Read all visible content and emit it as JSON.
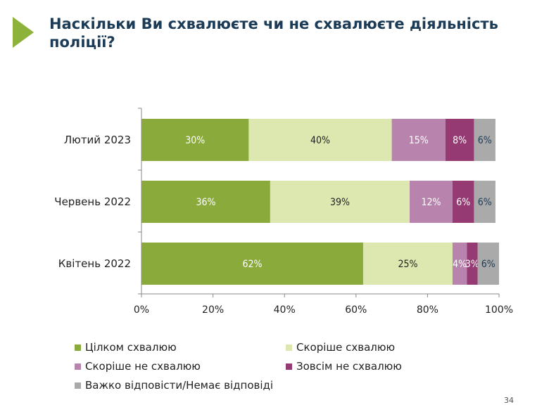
{
  "title": "Наскільки Ви схвалюєте чи не схвалюєте діяльність поліції?",
  "page_number": "34",
  "chart_data": {
    "type": "bar",
    "orientation": "horizontal",
    "stacked": true,
    "categories": [
      "Лютий 2023",
      "Червень 2022",
      "Квітень 2022"
    ],
    "series": [
      {
        "name": "Цілком схвалюю",
        "color": "#8aab3c",
        "label_color": "#ffffff",
        "values": [
          30,
          36,
          62
        ]
      },
      {
        "name": "Скоріше схвалюю",
        "color": "#dde8b0",
        "label_color": "#222222",
        "values": [
          40,
          39,
          25
        ]
      },
      {
        "name": "Скоріше не схвалюю",
        "color": "#b884ad",
        "label_color": "#ffffff",
        "values": [
          15,
          12,
          4
        ]
      },
      {
        "name": "Зовсім не схвалюю",
        "color": "#963a73",
        "label_color": "#ffffff",
        "values": [
          8,
          6,
          3
        ]
      },
      {
        "name": "Важко відповісти/Немає відповіді",
        "color": "#aaaaaa",
        "label_color": "#1c3b56",
        "values": [
          6,
          6,
          6
        ]
      }
    ],
    "xlim": [
      0,
      100
    ],
    "xticks": [
      "0%",
      "20%",
      "40%",
      "60%",
      "80%",
      "100%"
    ],
    "grid": false,
    "legend_position": "bottom"
  }
}
